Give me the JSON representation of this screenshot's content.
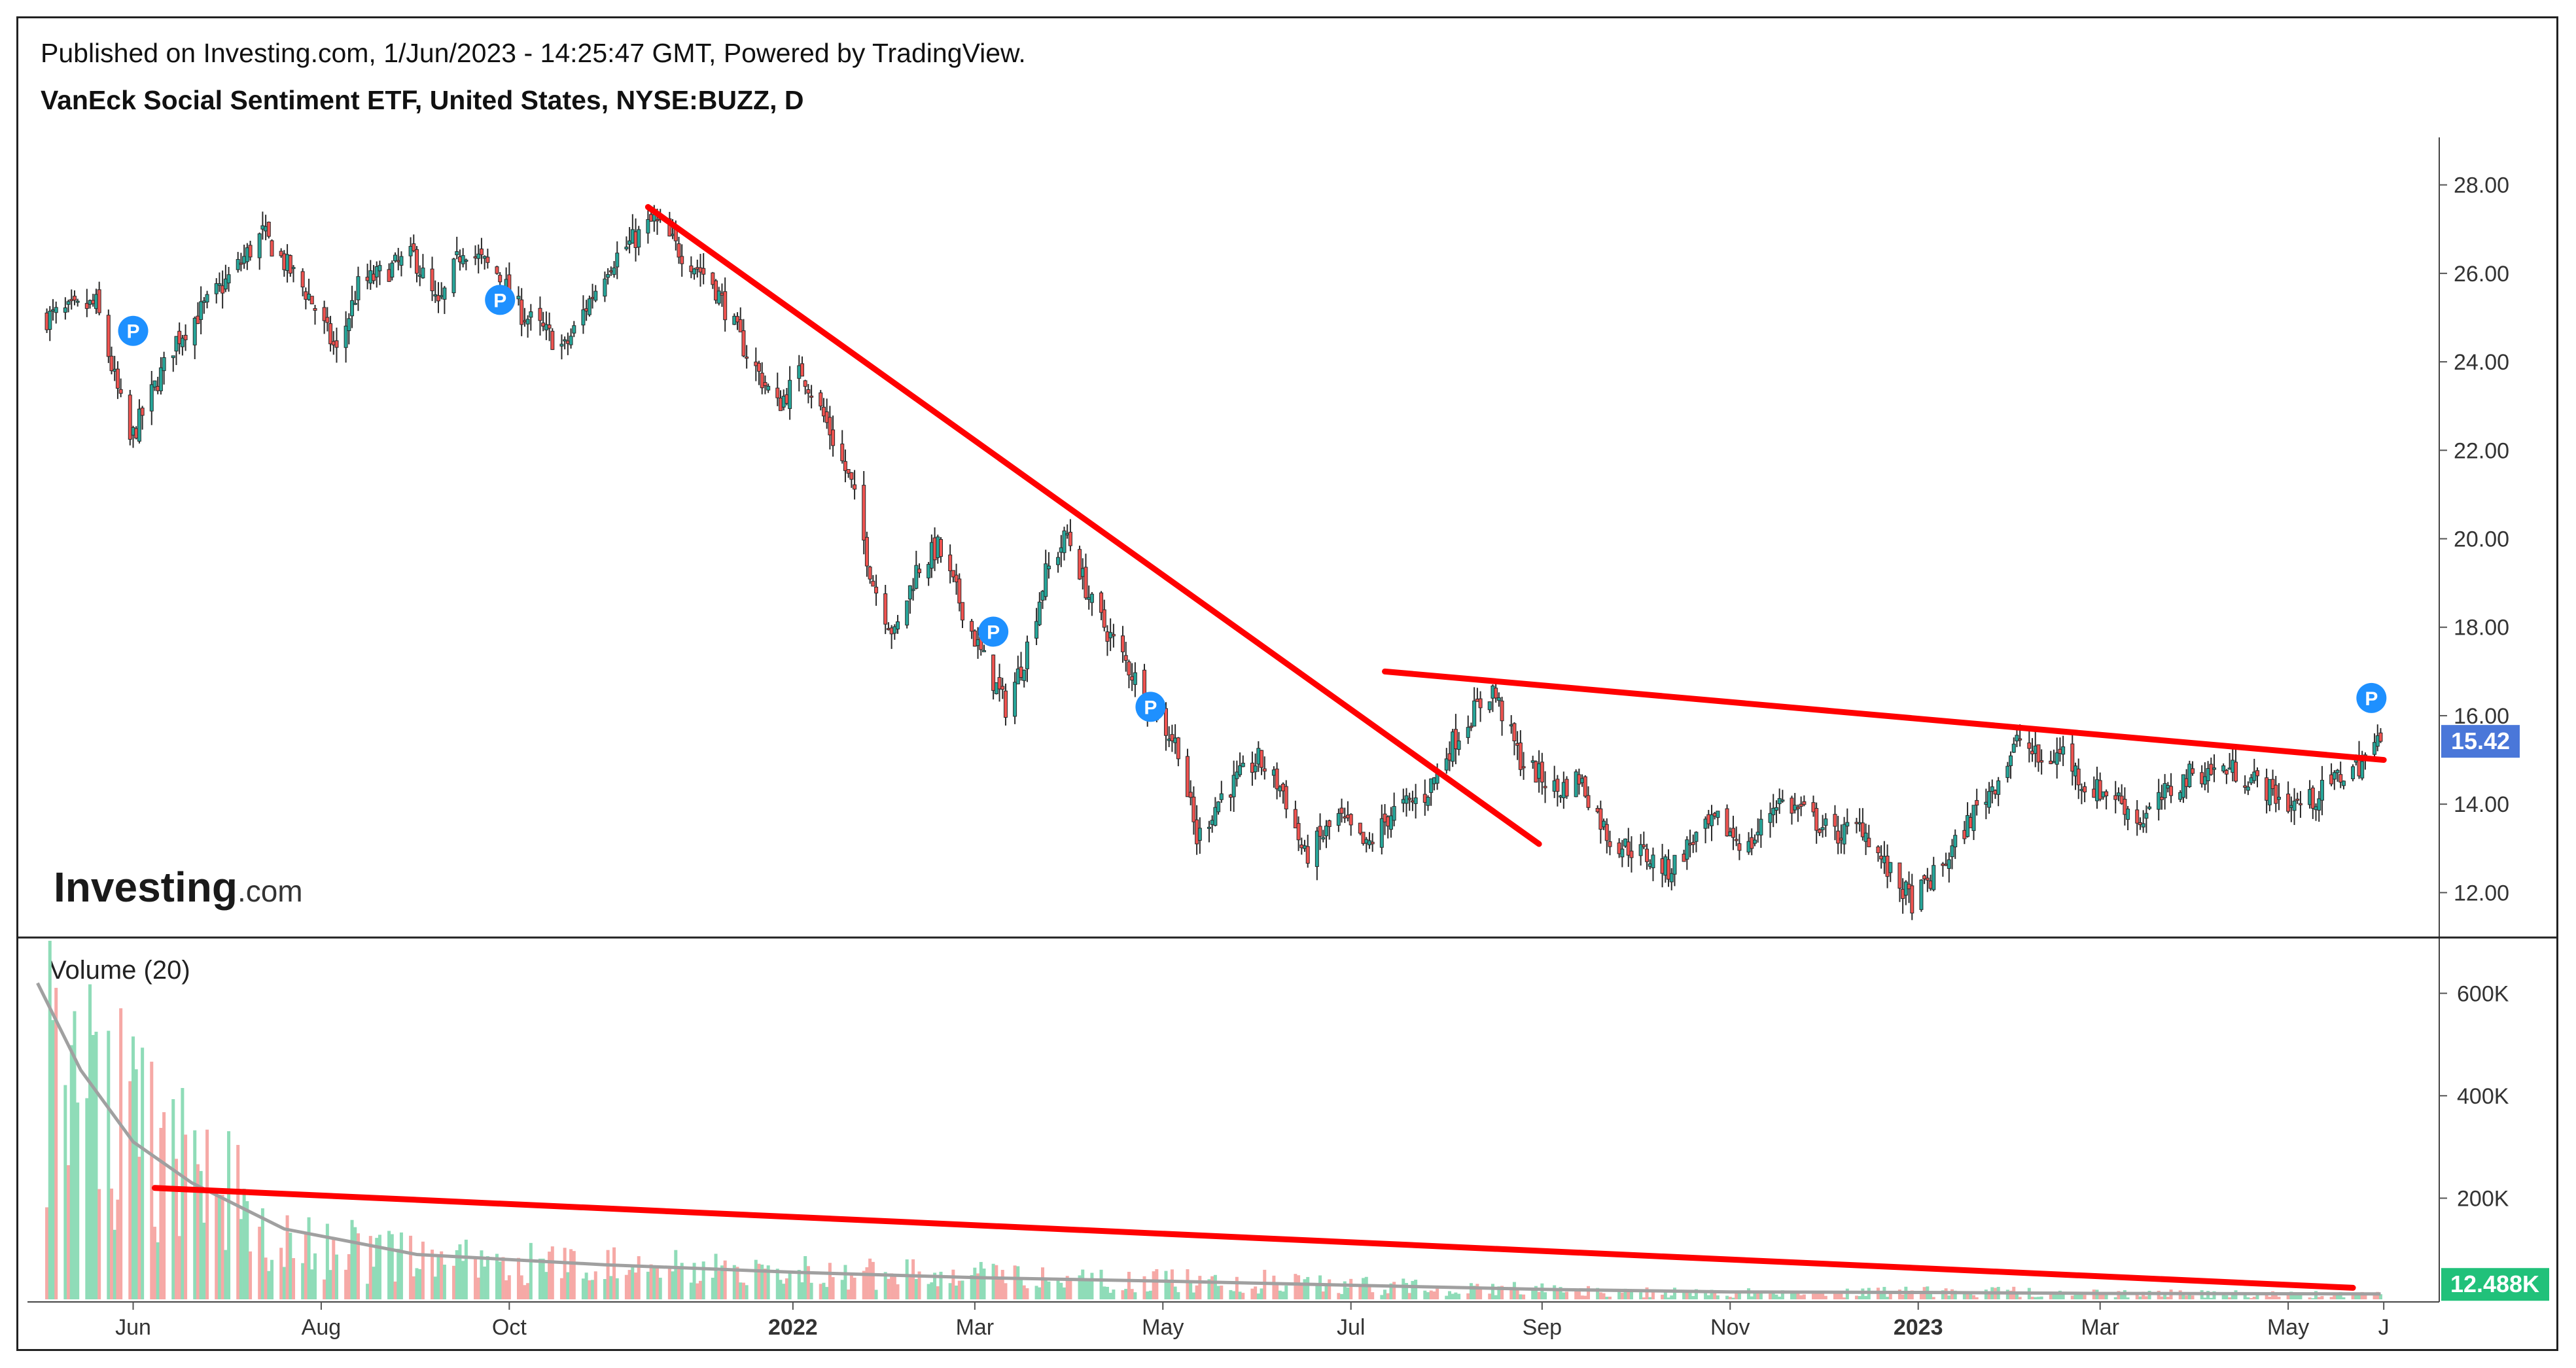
{
  "header": {
    "published": "Published on Investing.com, 1/Jun/2023 - 14:25:47 GMT, Powered by TradingView.",
    "instrument": "VanEck Social Sentiment ETF, United States, NYSE:BUZZ, D"
  },
  "branding": {
    "logo_main": "Investing",
    "logo_suffix": ".com"
  },
  "volume_label": "Volume (20)",
  "price_badge": "15.42",
  "volume_badge": "12.488K",
  "marker_label": "P",
  "colors": {
    "up": "#26a69a",
    "down": "#ef5350",
    "vol_up": "#8fdcb8",
    "vol_down": "#f6a9a6",
    "trendline": "#ff0000",
    "vol_ma": "#a0a0a0",
    "price_badge_bg": "#4a77d9",
    "volume_badge_bg": "#21c17a",
    "marker_bg": "#1e90ff"
  },
  "chart_data": [
    {
      "type": "candlestick",
      "title": "VanEck Social Sentiment ETF, United States, NYSE:BUZZ, D",
      "x_ticks": [
        "Jun",
        "Aug",
        "Oct",
        "2022",
        "Mar",
        "May",
        "Jul",
        "Sep",
        "Nov",
        "2023",
        "Mar",
        "May",
        "J"
      ],
      "y_ticks": [
        "28.00",
        "26.00",
        "24.00",
        "22.00",
        "20.00",
        "18.00",
        "16.00",
        "14.00",
        "12.00"
      ],
      "ylim": [
        11.0,
        29.0
      ],
      "last_price": 15.42,
      "series": [
        {
          "name": "",
          "points": [
            [
              "2021-05-04",
              25.0
            ],
            [
              "2021-05-20",
              25.3
            ],
            [
              "2021-05-31",
              22.2
            ],
            [
              "2021-06-15",
              24.5
            ],
            [
              "2021-07-01",
              25.8
            ],
            [
              "2021-07-13",
              26.9
            ],
            [
              "2021-07-28",
              25.5
            ],
            [
              "2021-08-06",
              24.2
            ],
            [
              "2021-08-13",
              25.7
            ],
            [
              "2021-08-31",
              26.4
            ],
            [
              "2021-09-08",
              25.2
            ],
            [
              "2021-09-16",
              26.6
            ],
            [
              "2021-09-27",
              26.0
            ],
            [
              "2021-10-05",
              25.1
            ],
            [
              "2021-10-19",
              24.3
            ],
            [
              "2021-11-02",
              26.2
            ],
            [
              "2021-11-17",
              27.2
            ],
            [
              "2021-11-24",
              26.6
            ],
            [
              "2021-12-06",
              25.8
            ],
            [
              "2021-12-17",
              24.2
            ],
            [
              "2021-12-27",
              23.0
            ],
            [
              "2022-01-04",
              23.8
            ],
            [
              "2022-01-12",
              22.6
            ],
            [
              "2022-01-20",
              21.2
            ],
            [
              "2022-01-27",
              19.0
            ],
            [
              "2022-02-03",
              17.8
            ],
            [
              "2022-02-10",
              19.3
            ],
            [
              "2022-02-17",
              19.8
            ],
            [
              "2022-02-24",
              18.6
            ],
            [
              "2022-03-03",
              17.4
            ],
            [
              "2022-03-11",
              16.2
            ],
            [
              "2022-03-17",
              17.3
            ],
            [
              "2022-03-24",
              19.2
            ],
            [
              "2022-03-31",
              20.1
            ],
            [
              "2022-04-08",
              18.5
            ],
            [
              "2022-04-19",
              17.2
            ],
            [
              "2022-04-29",
              16.0
            ],
            [
              "2022-05-06",
              15.3
            ],
            [
              "2022-05-12",
              13.2
            ],
            [
              "2022-05-20",
              14.2
            ],
            [
              "2022-06-01",
              15.0
            ],
            [
              "2022-06-09",
              14.3
            ],
            [
              "2022-06-16",
              12.8
            ],
            [
              "2022-06-27",
              13.7
            ],
            [
              "2022-07-06",
              13.0
            ],
            [
              "2022-07-14",
              13.8
            ],
            [
              "2022-07-25",
              14.2
            ],
            [
              "2022-08-03",
              15.4
            ],
            [
              "2022-08-10",
              16.1
            ],
            [
              "2022-08-16",
              16.6
            ],
            [
              "2022-08-25",
              15.0
            ],
            [
              "2022-09-06",
              14.3
            ],
            [
              "2022-09-13",
              14.6
            ],
            [
              "2022-09-23",
              13.2
            ],
            [
              "2022-10-03",
              12.9
            ],
            [
              "2022-10-12",
              12.5
            ],
            [
              "2022-10-20",
              13.2
            ],
            [
              "2022-10-28",
              13.6
            ],
            [
              "2022-11-07",
              13.0
            ],
            [
              "2022-11-16",
              14.1
            ],
            [
              "2022-11-25",
              13.8
            ],
            [
              "2022-12-05",
              13.3
            ],
            [
              "2022-12-14",
              13.5
            ],
            [
              "2022-12-22",
              12.5
            ],
            [
              "2022-12-30",
              11.8
            ],
            [
              "2023-01-09",
              12.6
            ],
            [
              "2023-01-19",
              13.8
            ],
            [
              "2023-01-27",
              14.6
            ],
            [
              "2023-02-03",
              15.5
            ],
            [
              "2023-02-10",
              14.9
            ],
            [
              "2023-02-17",
              15.2
            ],
            [
              "2023-02-24",
              14.4
            ],
            [
              "2023-03-06",
              14.2
            ],
            [
              "2023-03-14",
              13.6
            ],
            [
              "2023-03-22",
              14.2
            ],
            [
              "2023-03-31",
              14.7
            ],
            [
              "2023-04-12",
              14.8
            ],
            [
              "2023-04-21",
              14.5
            ],
            [
              "2023-05-01",
              14.0
            ],
            [
              "2023-05-09",
              14.1
            ],
            [
              "2023-05-17",
              14.6
            ],
            [
              "2023-05-24",
              14.9
            ],
            [
              "2023-05-31",
              15.42
            ]
          ]
        }
      ],
      "markers": [
        {
          "x": "2021-06-01",
          "y": 24.7,
          "label": "P"
        },
        {
          "x": "2021-09-28",
          "y": 25.4,
          "label": "P"
        },
        {
          "x": "2022-03-07",
          "y": 17.9,
          "label": "P"
        },
        {
          "x": "2022-04-27",
          "y": 16.2,
          "label": "P"
        },
        {
          "x": "2023-05-28",
          "y": 16.4,
          "label": "P"
        }
      ],
      "trendlines": [
        {
          "from": [
            "2021-11-15",
            27.5
          ],
          "to": [
            "2022-08-31",
            13.1
          ]
        },
        {
          "from": [
            "2022-07-12",
            17.0
          ],
          "to": [
            "2023-06-01",
            15.0
          ]
        }
      ]
    },
    {
      "type": "bar",
      "title": "Volume (20)",
      "y_ticks": [
        "600K",
        "400K",
        "200K"
      ],
      "ylim": [
        0,
        700000
      ],
      "last_volume": 12488,
      "series": [
        {
          "name": "",
          "points": [
            [
              "2021-05-04",
              520000
            ],
            [
              "2021-05-20",
              420000
            ],
            [
              "2021-06-03",
              330000
            ],
            [
              "2021-06-21",
              260000
            ],
            [
              "2021-07-15",
              150000
            ],
            [
              "2021-08-16",
              90000
            ],
            [
              "2021-09-15",
              75000
            ],
            [
              "2021-10-15",
              70000
            ],
            [
              "2021-11-15",
              65000
            ],
            [
              "2021-12-15",
              60000
            ],
            [
              "2022-01-18",
              55000
            ],
            [
              "2022-02-15",
              52000
            ],
            [
              "2022-03-15",
              45000
            ],
            [
              "2022-04-15",
              38000
            ],
            [
              "2022-05-16",
              42000
            ],
            [
              "2022-06-15",
              35000
            ],
            [
              "2022-07-15",
              28000
            ],
            [
              "2022-08-15",
              25000
            ],
            [
              "2022-09-15",
              18000
            ],
            [
              "2022-10-17",
              16000
            ],
            [
              "2022-11-15",
              15000
            ],
            [
              "2022-12-15",
              17000
            ],
            [
              "2023-01-17",
              18000
            ],
            [
              "2023-02-15",
              16000
            ],
            [
              "2023-03-15",
              14000
            ],
            [
              "2023-04-14",
              13000
            ],
            [
              "2023-05-15",
              12500
            ],
            [
              "2023-05-31",
              12488
            ]
          ]
        },
        {
          "name": "",
          "points": [
            [
              "2021-05-01",
              620000
            ],
            [
              "2021-05-15",
              450000
            ],
            [
              "2021-06-01",
              310000
            ],
            [
              "2021-06-20",
              230000
            ],
            [
              "2021-07-20",
              140000
            ],
            [
              "2021-09-01",
              90000
            ],
            [
              "2021-11-01",
              70000
            ],
            [
              "2022-01-03",
              55000
            ],
            [
              "2022-03-01",
              45000
            ],
            [
              "2022-05-02",
              38000
            ],
            [
              "2022-07-01",
              30000
            ],
            [
              "2022-09-01",
              22000
            ],
            [
              "2022-11-01",
              17000
            ],
            [
              "2023-01-03",
              16000
            ],
            [
              "2023-03-01",
              14000
            ],
            [
              "2023-05-31",
              13000
            ]
          ]
        }
      ],
      "trendlines": [
        {
          "from": [
            "2021-06-08",
            220000
          ],
          "to": [
            "2023-05-22",
            25000
          ]
        }
      ]
    }
  ]
}
